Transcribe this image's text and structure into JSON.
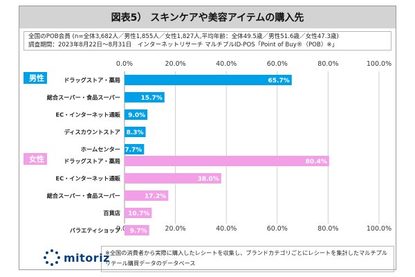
{
  "title": "図表5） スキンケアや美容アイテムの購入先",
  "info": {
    "line1": "全国のPOB会員 (n=全体3,682人／男性1,855人／女性1,827人,平均年齢：全体49.5歳／男性51.6歳／女性47.3歳)",
    "line2": "調査期間：2023年8月22日～8月31日　インターネットリサーチ マルチプルID-POS「Point of Buy®（POB）※」"
  },
  "note": "※全国の消費者から実際に購入したレシートを収集し、ブランドカテゴリごとにレシートを集計したマルチプルリテール購買データのデータベース",
  "logo": {
    "text": "mitoriz"
  },
  "colors": {
    "male": "#00a0e9",
    "female": "#f29fe8",
    "title_bg": "#d3d3d3"
  },
  "chart_data": {
    "type": "bar",
    "orientation": "horizontal",
    "xlim": [
      0,
      100
    ],
    "ticks": [
      "0.0%",
      "20.0%",
      "40.0%",
      "60.0%",
      "80.0%",
      "100.0%"
    ],
    "grid": true,
    "groups": [
      {
        "name": "男性",
        "color": "#00a0e9",
        "categories": [
          "ドラッグストア・薬局",
          "総合スーパー・食品スーパー",
          "EC・インターネット通販",
          "ディスカウントストア",
          "ホームセンター"
        ],
        "values": [
          65.7,
          15.7,
          9.0,
          8.3,
          7.7
        ],
        "labels": [
          "65.7%",
          "15.7%",
          "9.0%",
          "8.3%",
          "7.7%"
        ]
      },
      {
        "name": "女性",
        "color": "#f29fe8",
        "categories": [
          "ドラッグストア・薬局",
          "EC・インターネット通販",
          "総合スーパー・食品スーパー",
          "百貨店",
          "バラエティショップ"
        ],
        "values": [
          80.4,
          38.0,
          17.2,
          10.7,
          9.7
        ],
        "labels": [
          "80.4%",
          "38.0%",
          "17.2%",
          "10.7%",
          "9.7%"
        ]
      }
    ]
  }
}
